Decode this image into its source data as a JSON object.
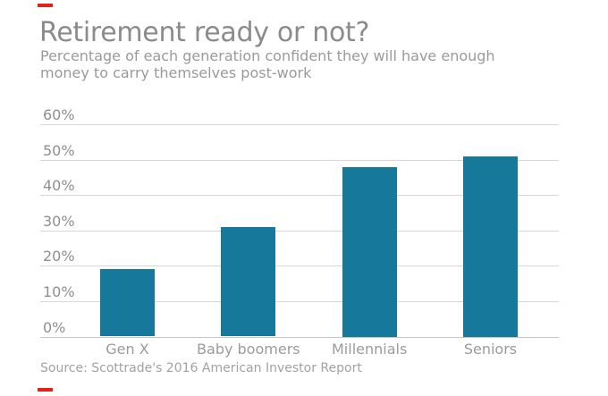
{
  "header": {
    "title": "Retirement ready or not?",
    "subtitle_lines": [
      "Percentage of each generation confident they will have enough",
      "money to carry themselves post-work"
    ]
  },
  "footer": {
    "source": "Source: Scottrade's 2016 American Investor Report"
  },
  "colors": {
    "accent_red": "#e2231a",
    "bar_teal": "#16799b",
    "grid_gray": "#d6d6d6",
    "axis_gray": "#c7c7c7",
    "title_gray": "#8b8b8b",
    "subtitle_gray": "#9a9a9a",
    "tick_gray": "#8f8f8f",
    "category_gray": "#9b9b9b",
    "source_gray": "#a2a2a2"
  },
  "chart_data": {
    "type": "bar",
    "title": "Retirement ready or not?",
    "subtitle": "Percentage of each generation confident they will have enough money to carry themselves post-work",
    "categories": [
      "Gen X",
      "Baby boomers",
      "Millennials",
      "Seniors"
    ],
    "values": [
      19,
      31,
      48,
      51
    ],
    "unit": "%",
    "xlabel": "",
    "ylabel": "",
    "ylim": [
      0,
      60
    ],
    "ytick_interval": 10,
    "ytick_labels": [
      "0%",
      "10%",
      "20%",
      "30%",
      "40%",
      "50%",
      "60%"
    ],
    "grid": true,
    "legend": "none",
    "bar_color": "#16799b",
    "source": "Source: Scottrade's 2016 American Investor Report"
  }
}
